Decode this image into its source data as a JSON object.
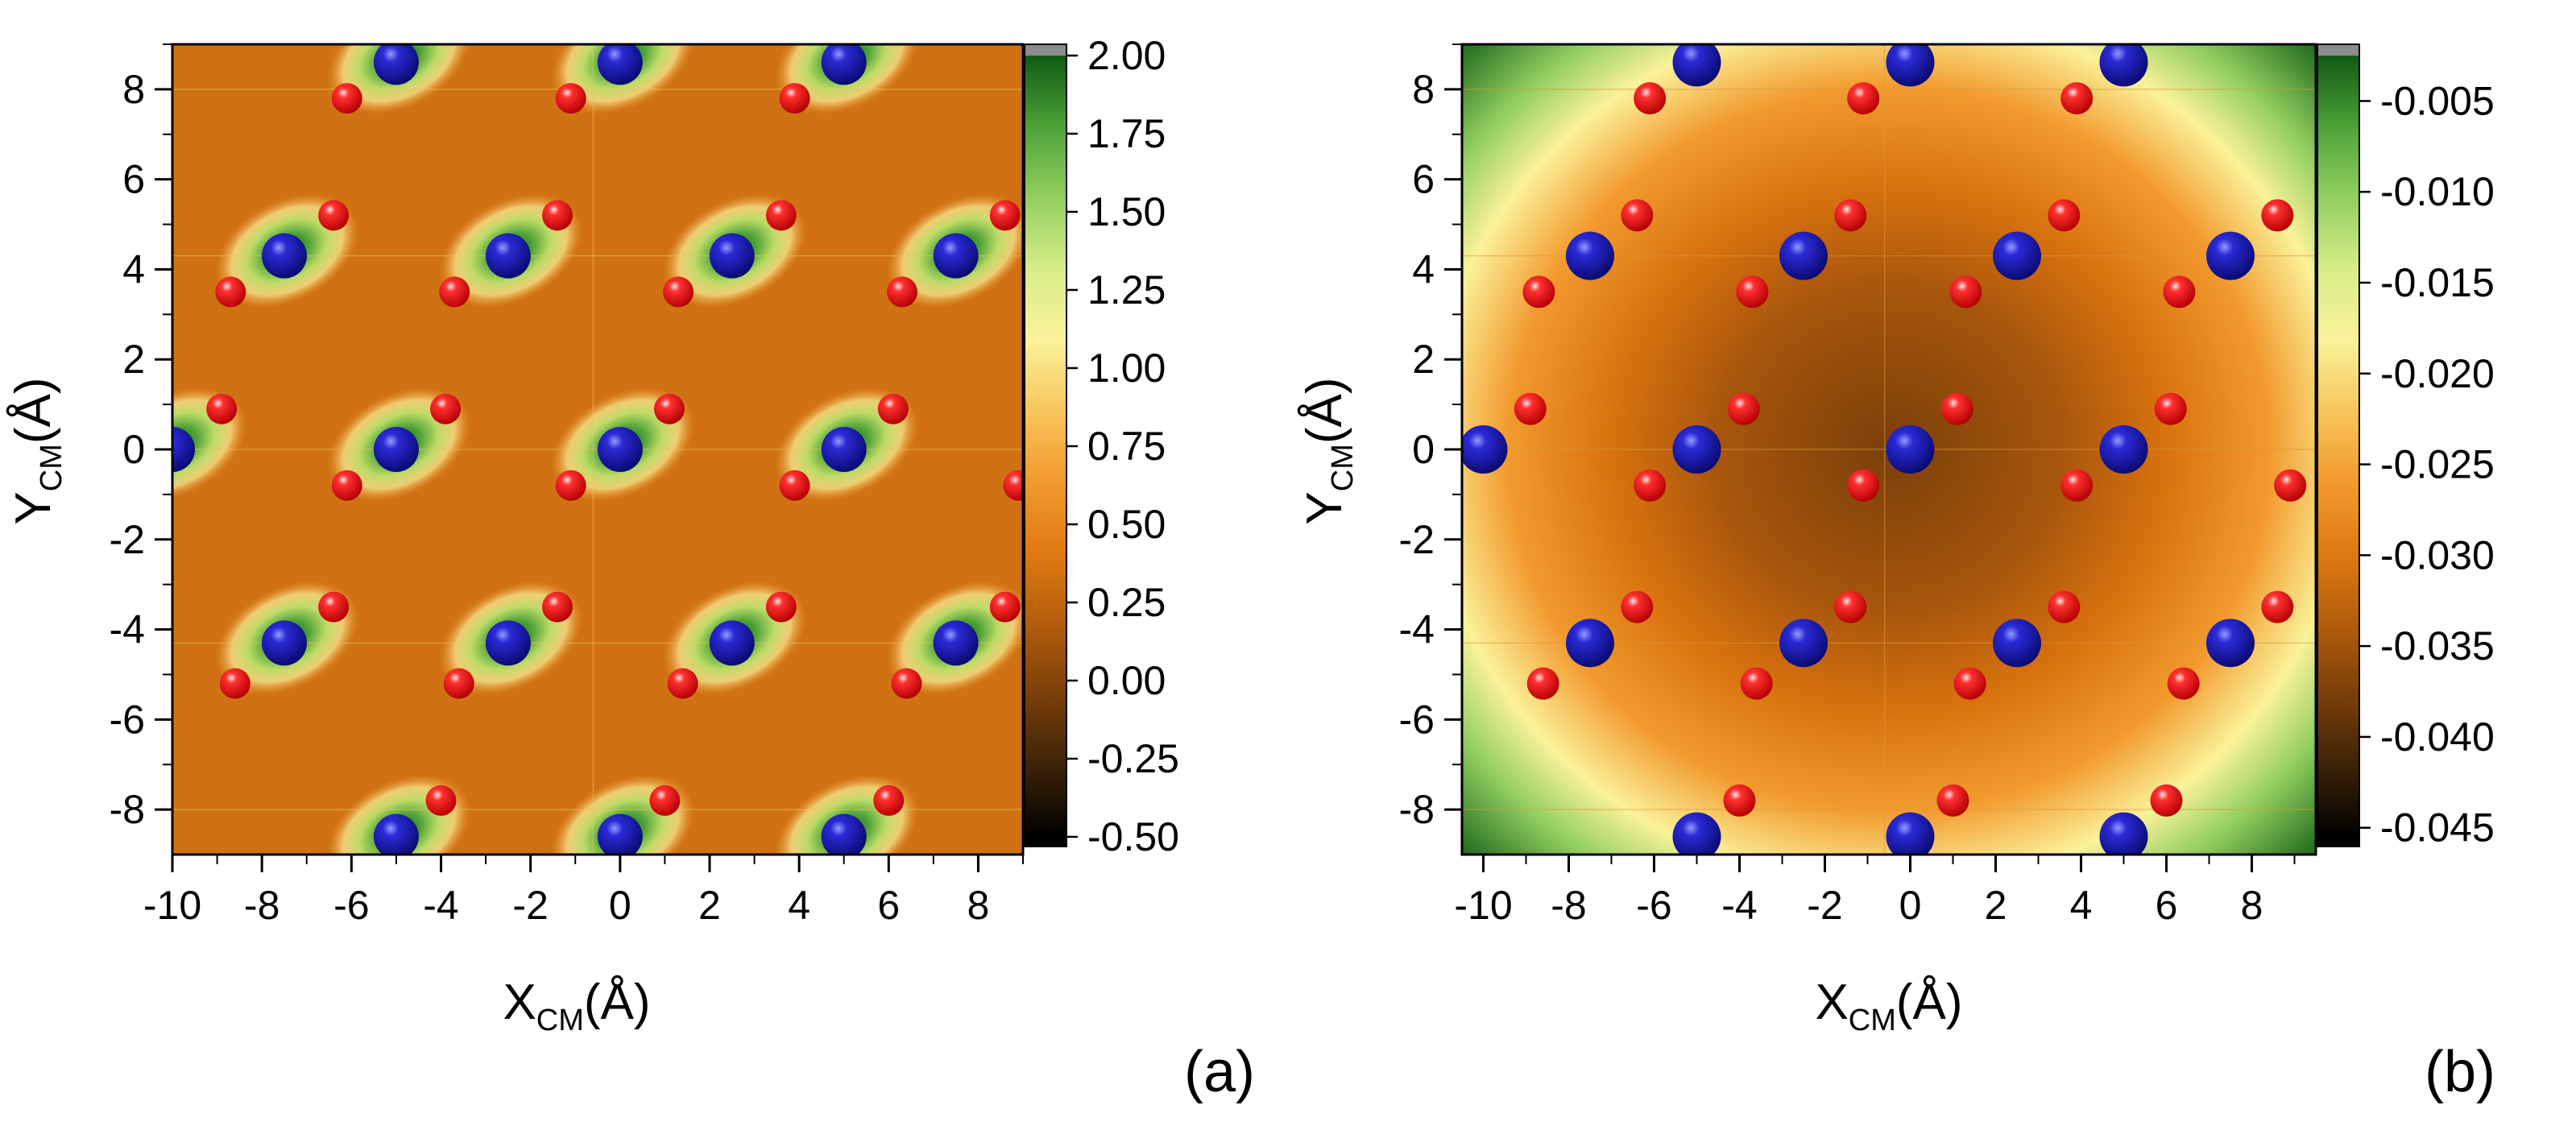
{
  "chart_data": [
    {
      "type": "heatmap",
      "panel_label": "(a)",
      "title": "",
      "xlabel_base": "X",
      "xlabel_sub": "CM",
      "xlabel_unit": "(Å)",
      "ylabel_base": "Y",
      "ylabel_sub": "CM",
      "ylabel_unit": "(Å)",
      "xlim": [
        -10,
        9
      ],
      "ylim": [
        -9,
        9
      ],
      "xticks": [
        -10,
        -8,
        -6,
        -4,
        -2,
        0,
        2,
        4,
        6,
        8
      ],
      "yticks": [
        -8,
        -6,
        -4,
        -2,
        0,
        2,
        4,
        6,
        8
      ],
      "grid": false,
      "colorbar": {
        "range": [
          -0.5,
          2.0
        ],
        "ticks": [
          "2.00",
          "1.75",
          "1.50",
          "1.25",
          "1.00",
          "0.75",
          "0.50",
          "0.25",
          "0.00",
          "-0.25",
          "-0.50"
        ],
        "tick_values": [
          2.0,
          1.75,
          1.5,
          1.25,
          1.0,
          0.75,
          0.5,
          0.25,
          0.0,
          -0.25,
          -0.5
        ]
      },
      "background_level": 0.1,
      "blue_atoms": [
        [
          -5,
          8.6
        ],
        [
          0,
          8.6
        ],
        [
          5,
          8.6
        ],
        [
          -7.5,
          4.3
        ],
        [
          -2.5,
          4.3
        ],
        [
          2.5,
          4.3
        ],
        [
          7.5,
          4.3
        ],
        [
          -10,
          0
        ],
        [
          -5,
          0
        ],
        [
          0,
          0
        ],
        [
          5,
          0
        ],
        [
          -7.5,
          -4.3
        ],
        [
          -2.5,
          -4.3
        ],
        [
          2.5,
          -4.3
        ],
        [
          7.5,
          -4.3
        ],
        [
          -5,
          -8.6
        ],
        [
          0,
          -8.6
        ],
        [
          5,
          -8.6
        ]
      ],
      "red_atoms": [
        [
          -6.1,
          7.8
        ],
        [
          -1.1,
          7.8
        ],
        [
          3.9,
          7.8
        ],
        [
          -6.4,
          5.2
        ],
        [
          -1.4,
          5.2
        ],
        [
          3.6,
          5.2
        ],
        [
          8.6,
          5.2
        ],
        [
          -8.7,
          3.5
        ],
        [
          -3.7,
          3.5
        ],
        [
          1.3,
          3.5
        ],
        [
          6.3,
          3.5
        ],
        [
          -8.9,
          0.9
        ],
        [
          -3.9,
          0.9
        ],
        [
          1.1,
          0.9
        ],
        [
          6.1,
          0.9
        ],
        [
          -6.1,
          -0.8
        ],
        [
          -1.1,
          -0.8
        ],
        [
          3.9,
          -0.8
        ],
        [
          8.9,
          -0.8
        ],
        [
          -6.4,
          -3.5
        ],
        [
          -1.4,
          -3.5
        ],
        [
          3.6,
          -3.5
        ],
        [
          8.6,
          -3.5
        ],
        [
          -8.6,
          -5.2
        ],
        [
          -3.6,
          -5.2
        ],
        [
          1.4,
          -5.2
        ],
        [
          6.4,
          -5.2
        ],
        [
          -4,
          -7.8
        ],
        [
          1,
          -7.8
        ],
        [
          6,
          -7.8
        ]
      ]
    },
    {
      "type": "heatmap",
      "panel_label": "(b)",
      "title": "",
      "xlabel_base": "X",
      "xlabel_sub": "CM",
      "xlabel_unit": "(Å)",
      "ylabel_base": "Y",
      "ylabel_sub": "CM",
      "ylabel_unit": "(Å)",
      "xlim": [
        -10.5,
        9.5
      ],
      "ylim": [
        -9,
        9
      ],
      "xticks": [
        -10,
        -8,
        -6,
        -4,
        -2,
        0,
        2,
        4,
        6,
        8
      ],
      "yticks": [
        -8,
        -6,
        -4,
        -2,
        0,
        2,
        4,
        6,
        8
      ],
      "grid": false,
      "colorbar": {
        "range": [
          -0.0455,
          -0.0025
        ],
        "ticks": [
          "-0.005",
          "-0.010",
          "-0.015",
          "-0.020",
          "-0.025",
          "-0.030",
          "-0.035",
          "-0.040",
          "-0.045"
        ],
        "tick_values": [
          -0.005,
          -0.01,
          -0.015,
          -0.02,
          -0.025,
          -0.03,
          -0.035,
          -0.04,
          -0.045
        ]
      },
      "blue_atoms": [
        [
          -5,
          8.6
        ],
        [
          0,
          8.6
        ],
        [
          5,
          8.6
        ],
        [
          -7.5,
          4.3
        ],
        [
          -2.5,
          4.3
        ],
        [
          2.5,
          4.3
        ],
        [
          7.5,
          4.3
        ],
        [
          -10,
          0
        ],
        [
          -5,
          0
        ],
        [
          0,
          0
        ],
        [
          5,
          0
        ],
        [
          -7.5,
          -4.3
        ],
        [
          -2.5,
          -4.3
        ],
        [
          2.5,
          -4.3
        ],
        [
          7.5,
          -4.3
        ],
        [
          -5,
          -8.6
        ],
        [
          0,
          -8.6
        ],
        [
          5,
          -8.6
        ]
      ],
      "red_atoms": [
        [
          -6.1,
          7.8
        ],
        [
          -1.1,
          7.8
        ],
        [
          3.9,
          7.8
        ],
        [
          -6.4,
          5.2
        ],
        [
          -1.4,
          5.2
        ],
        [
          3.6,
          5.2
        ],
        [
          8.6,
          5.2
        ],
        [
          -8.7,
          3.5
        ],
        [
          -3.7,
          3.5
        ],
        [
          1.3,
          3.5
        ],
        [
          6.3,
          3.5
        ],
        [
          -8.9,
          0.9
        ],
        [
          -3.9,
          0.9
        ],
        [
          1.1,
          0.9
        ],
        [
          6.1,
          0.9
        ],
        [
          -6.1,
          -0.8
        ],
        [
          -1.1,
          -0.8
        ],
        [
          3.9,
          -0.8
        ],
        [
          8.9,
          -0.8
        ],
        [
          -6.4,
          -3.5
        ],
        [
          -1.4,
          -3.5
        ],
        [
          3.6,
          -3.5
        ],
        [
          8.6,
          -3.5
        ],
        [
          -8.6,
          -5.2
        ],
        [
          -3.6,
          -5.2
        ],
        [
          1.4,
          -5.2
        ],
        [
          6.4,
          -5.2
        ],
        [
          -4,
          -7.8
        ],
        [
          1,
          -7.8
        ],
        [
          6,
          -7.8
        ]
      ]
    }
  ],
  "colors": {
    "blue_atom": "#0b0b8c",
    "red_atom": "#ff1a1a",
    "colormap": [
      "#000000",
      "#3d2308",
      "#7a3f0a",
      "#b35d0c",
      "#e07a12",
      "#f29a2e",
      "#f8c55c",
      "#fbf29a",
      "#d8ed8a",
      "#93cf60",
      "#4ea238",
      "#0f5a14"
    ]
  }
}
